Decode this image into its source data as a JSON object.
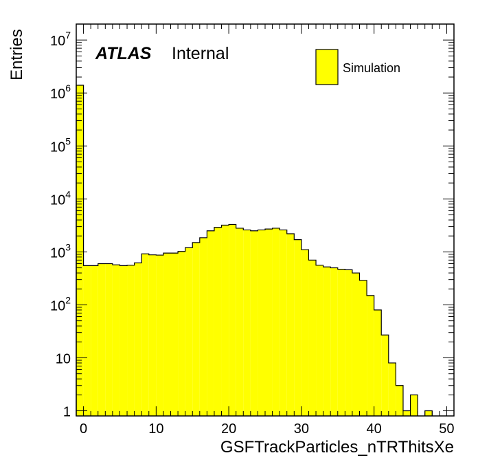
{
  "chart_data": {
    "type": "bar",
    "style": "step-histogram",
    "title": "",
    "xlabel": "GSFTrackParticles_nTRThitsXe",
    "ylabel": "Entries",
    "xlim": [
      -1,
      51
    ],
    "ylim": [
      0.8,
      20000000
    ],
    "y_scale": "log",
    "bin_width": 1,
    "x_ticks": [
      0,
      10,
      20,
      30,
      40,
      50
    ],
    "y_ticks": [
      {
        "value": 1,
        "base": "1",
        "exp": ""
      },
      {
        "value": 10,
        "base": "10",
        "exp": ""
      },
      {
        "value": 100,
        "base": "10",
        "exp": "2"
      },
      {
        "value": 1000,
        "base": "10",
        "exp": "3"
      },
      {
        "value": 10000,
        "base": "10",
        "exp": "4"
      },
      {
        "value": 100000,
        "base": "10",
        "exp": "5"
      },
      {
        "value": 1000000,
        "base": "10",
        "exp": "6"
      },
      {
        "value": 10000000,
        "base": "10",
        "exp": "7"
      }
    ],
    "bin_lows": [
      -1,
      0,
      1,
      2,
      3,
      4,
      5,
      6,
      7,
      8,
      9,
      10,
      11,
      12,
      13,
      14,
      15,
      16,
      17,
      18,
      19,
      20,
      21,
      22,
      23,
      24,
      25,
      26,
      27,
      28,
      29,
      30,
      31,
      32,
      33,
      34,
      35,
      36,
      37,
      38,
      39,
      40,
      41,
      42,
      43,
      44,
      45,
      46,
      47,
      48,
      49
    ],
    "values": [
      1400000,
      550,
      550,
      600,
      600,
      570,
      550,
      560,
      620,
      920,
      880,
      870,
      950,
      950,
      1020,
      1200,
      1500,
      1850,
      2500,
      2900,
      3200,
      3300,
      2800,
      2600,
      2500,
      2600,
      2700,
      2800,
      2600,
      2200,
      1700,
      1100,
      700,
      560,
      520,
      500,
      470,
      460,
      400,
      290,
      150,
      80,
      27,
      8,
      3,
      1,
      2,
      0,
      1,
      0,
      0
    ],
    "fill_color": "#ffff00",
    "legend": {
      "position": "top-right",
      "entries": [
        {
          "label": "Simulation",
          "color": "#ffff00"
        }
      ]
    },
    "annotations": {
      "atlas": "ATLAS",
      "status": "Internal"
    }
  }
}
